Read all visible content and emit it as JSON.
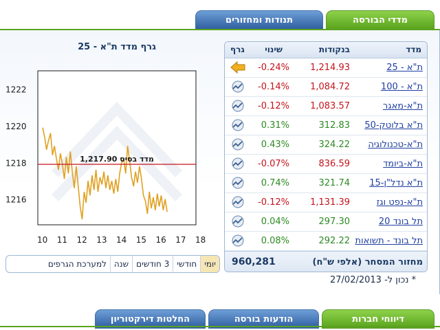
{
  "top_tabs": [
    {
      "label": "מדדי הבורסה",
      "active": true
    },
    {
      "label": "תנודות ומחזורים",
      "active": false
    }
  ],
  "chart": {
    "title": "גרף מדד ת\"א - 25",
    "base_label": "מדד בסיס 1,217.90",
    "range_buttons": [
      "יומי",
      "חודשי",
      "3 חודשים",
      "שנה",
      "למערכת הגרפים"
    ],
    "active_range": "יומי"
  },
  "chart_data": {
    "type": "line",
    "title": "גרף מדד ת\"א - 25",
    "x_ticks": [
      "10",
      "11",
      "12",
      "13",
      "14",
      "15",
      "16",
      "17",
      "18"
    ],
    "y_ticks": [
      "1216",
      "1218",
      "1220",
      "1222"
    ],
    "xlim": [
      10,
      18
    ],
    "ylim": [
      1214.6,
      1223.0
    ],
    "base_value": 1217.9,
    "series": [
      {
        "values": [
          [
            10.0,
            1219.9
          ],
          [
            10.1,
            1219.4
          ],
          [
            10.2,
            1218.7
          ],
          [
            10.3,
            1219.2
          ],
          [
            10.4,
            1219.6
          ],
          [
            10.5,
            1218.4
          ],
          [
            10.6,
            1218.9
          ],
          [
            10.7,
            1218.2
          ],
          [
            10.8,
            1217.6
          ],
          [
            10.9,
            1218.5
          ],
          [
            11.0,
            1217.9
          ],
          [
            11.1,
            1217.1
          ],
          [
            11.2,
            1218.3
          ],
          [
            11.3,
            1217.4
          ],
          [
            11.4,
            1218.6
          ],
          [
            11.5,
            1217.5
          ],
          [
            11.6,
            1216.6
          ],
          [
            11.7,
            1217.8
          ],
          [
            11.8,
            1216.7
          ],
          [
            11.9,
            1215.6
          ],
          [
            12.0,
            1214.9
          ],
          [
            12.1,
            1216.4
          ],
          [
            12.2,
            1215.8
          ],
          [
            12.3,
            1217.0
          ],
          [
            12.4,
            1216.2
          ],
          [
            12.5,
            1217.3
          ],
          [
            12.6,
            1216.5
          ],
          [
            12.7,
            1217.6
          ],
          [
            12.8,
            1216.4
          ],
          [
            12.9,
            1217.2
          ],
          [
            13.0,
            1216.8
          ],
          [
            13.1,
            1217.5
          ],
          [
            13.2,
            1216.6
          ],
          [
            13.3,
            1217.3
          ],
          [
            13.4,
            1216.5
          ],
          [
            13.5,
            1217.0
          ],
          [
            13.6,
            1216.3
          ],
          [
            13.7,
            1217.1
          ],
          [
            13.8,
            1216.4
          ],
          [
            13.9,
            1217.4
          ],
          [
            14.0,
            1218.0
          ],
          [
            14.1,
            1218.2
          ],
          [
            14.2,
            1217.4
          ],
          [
            14.3,
            1218.9
          ],
          [
            14.4,
            1218.1
          ],
          [
            14.5,
            1217.2
          ],
          [
            14.6,
            1216.7
          ],
          [
            14.7,
            1217.5
          ],
          [
            14.8,
            1216.9
          ],
          [
            14.9,
            1217.8
          ],
          [
            15.0,
            1217.1
          ],
          [
            15.1,
            1216.2
          ],
          [
            15.2,
            1215.9
          ],
          [
            15.3,
            1215.2
          ],
          [
            15.4,
            1216.4
          ],
          [
            15.5,
            1215.5
          ],
          [
            15.6,
            1216.1
          ],
          [
            15.7,
            1215.4
          ],
          [
            15.8,
            1216.3
          ],
          [
            15.9,
            1215.6
          ],
          [
            16.0,
            1216.2
          ],
          [
            16.1,
            1215.4
          ],
          [
            16.2,
            1216.0
          ],
          [
            16.3,
            1215.3
          ]
        ]
      }
    ]
  },
  "table": {
    "headers": {
      "name": "מדד",
      "points": "בנקודות",
      "change": "שינוי",
      "graph": "גרף"
    },
    "rows": [
      {
        "name": "ת\"א - 25",
        "points": "1,214.93",
        "change": "-0.24%",
        "trend": "down",
        "icon": "arrow-icon"
      },
      {
        "name": "ת\"א - 100",
        "points": "1,084.72",
        "change": "-0.14%",
        "trend": "down",
        "icon": "chart-icon"
      },
      {
        "name": "ת\"א-מאגר",
        "points": "1,083.57",
        "change": "-0.12%",
        "trend": "down",
        "icon": "chart-icon"
      },
      {
        "name": "ת\"א בלוטק-50",
        "points": "312.83",
        "change": "0.31%",
        "trend": "up",
        "icon": "chart-icon"
      },
      {
        "name": "ת\"א-טכנולוגיה",
        "points": "324.22",
        "change": "0.43%",
        "trend": "up",
        "icon": "chart-icon"
      },
      {
        "name": "ת\"א-ביומד",
        "points": "836.59",
        "change": "-0.07%",
        "trend": "down",
        "icon": "chart-icon"
      },
      {
        "name": "ת\"א נדל\"ן-15",
        "points": "321.74",
        "change": "0.74%",
        "trend": "up",
        "icon": "chart-icon"
      },
      {
        "name": "ת\"א-נפט וגז",
        "points": "1,131.39",
        "change": "-0.12%",
        "trend": "down",
        "icon": "chart-icon"
      },
      {
        "name": "תל בונד 20",
        "points": "297.30",
        "change": "0.04%",
        "trend": "up",
        "icon": "chart-icon"
      },
      {
        "name": "תל בונד - תשואות",
        "points": "292.22",
        "change": "0.08%",
        "trend": "up",
        "icon": "chart-icon"
      }
    ],
    "turnover_label": "מחזור המסחר (אלפי ש\"ח)",
    "turnover_value": "960,281"
  },
  "as_of": "* נכון ל- 27/02/2013",
  "bottom_tabs": [
    {
      "label": "דיווחי חברות",
      "active": true
    },
    {
      "label": "הודעות בורסה",
      "active": false
    },
    {
      "label": "החלטות דירקטוריון",
      "active": false
    }
  ],
  "colors": {
    "up": "#2c8a22",
    "down": "#c4141c",
    "line": "#e0a020",
    "base_line": "#c4141c",
    "accent_green": "#5aa31e"
  }
}
